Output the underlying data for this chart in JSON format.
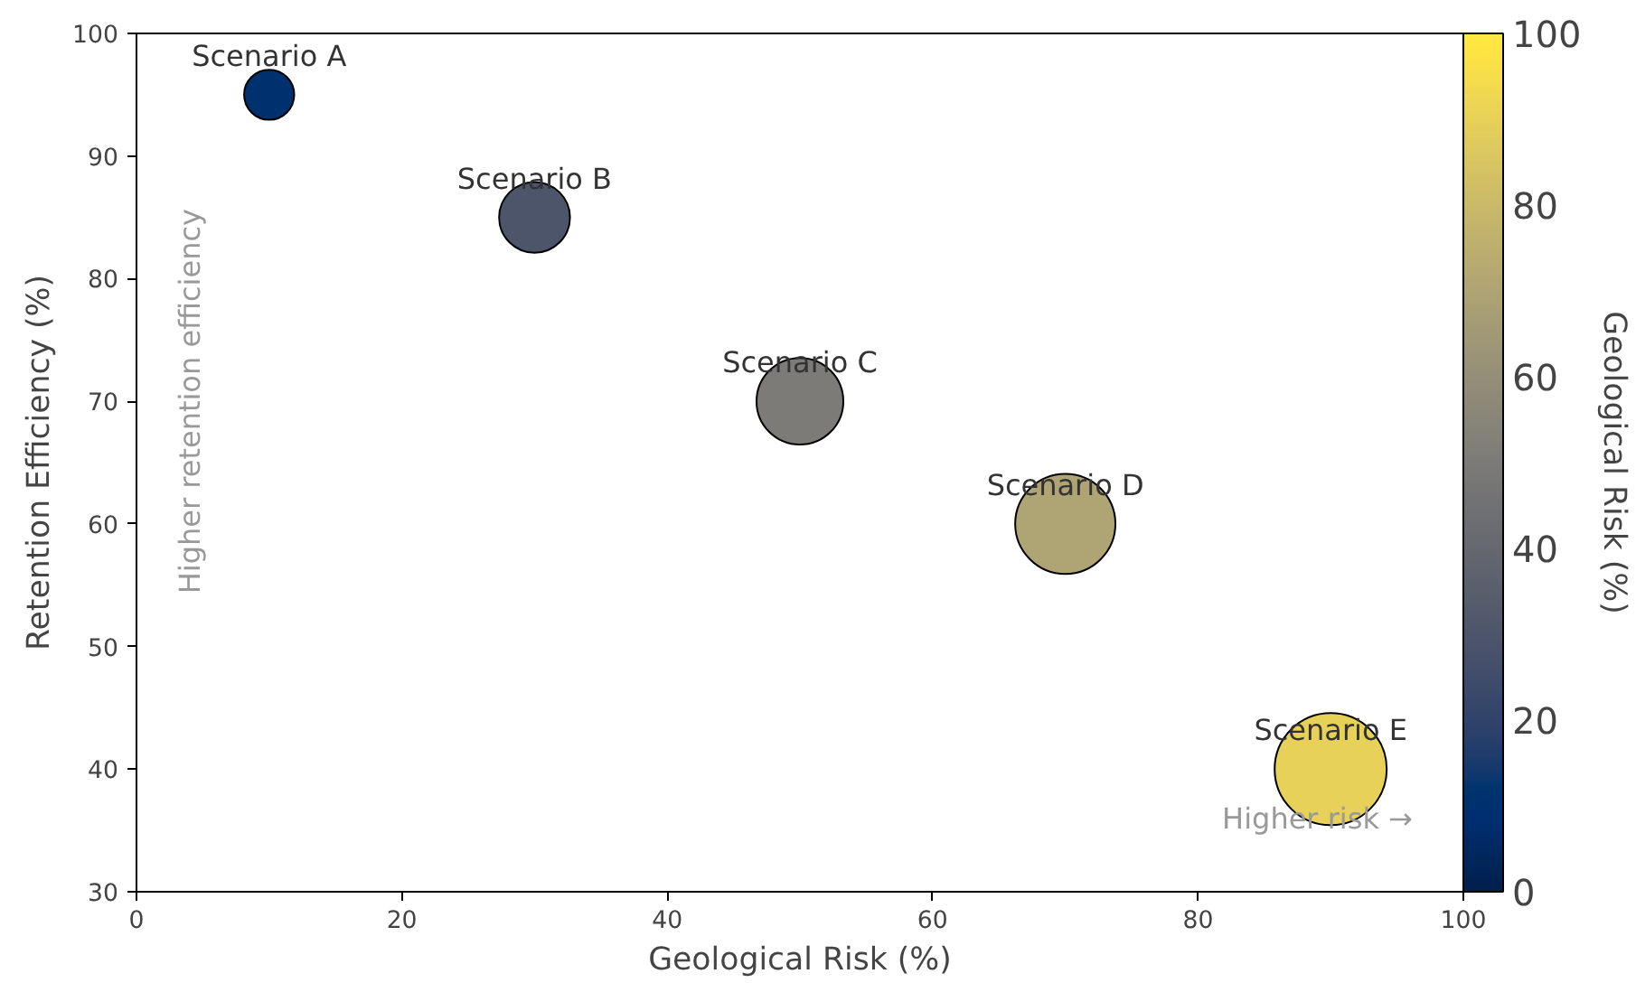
{
  "chart_data": {
    "type": "bubble",
    "xlabel": "Geological Risk (%)",
    "ylabel": "Retention Efficiency (%)",
    "clabel": "Geological Risk (%)",
    "x": [
      10,
      30,
      50,
      70,
      90
    ],
    "values": [
      95,
      85,
      70,
      60,
      40
    ],
    "sizes": [
      0.2,
      0.4,
      0.6,
      0.8,
      1.0
    ],
    "cvalues": [
      10,
      30,
      50,
      70,
      90
    ],
    "xlim": [
      0,
      100
    ],
    "ylim": [
      30,
      100
    ],
    "xticks": [
      0,
      20,
      40,
      60,
      80,
      100
    ],
    "yticks": [
      30,
      40,
      50,
      60,
      70,
      80,
      90,
      100
    ],
    "clim": [
      0,
      100
    ],
    "cticks": [
      0,
      20,
      40,
      60,
      80,
      100
    ],
    "grid": false,
    "annotations": [
      {
        "text": "Scenario A",
        "x": 10,
        "y": 95
      },
      {
        "text": "Scenario B",
        "x": 30,
        "y": 85
      },
      {
        "text": "Scenario C",
        "x": 50,
        "y": 70
      },
      {
        "text": "Scenario D",
        "x": 70,
        "y": 60
      },
      {
        "text": "Scenario E",
        "x": 90,
        "y": 40
      },
      "Higher retention efficiency",
      "Higher risk →"
    ]
  }
}
